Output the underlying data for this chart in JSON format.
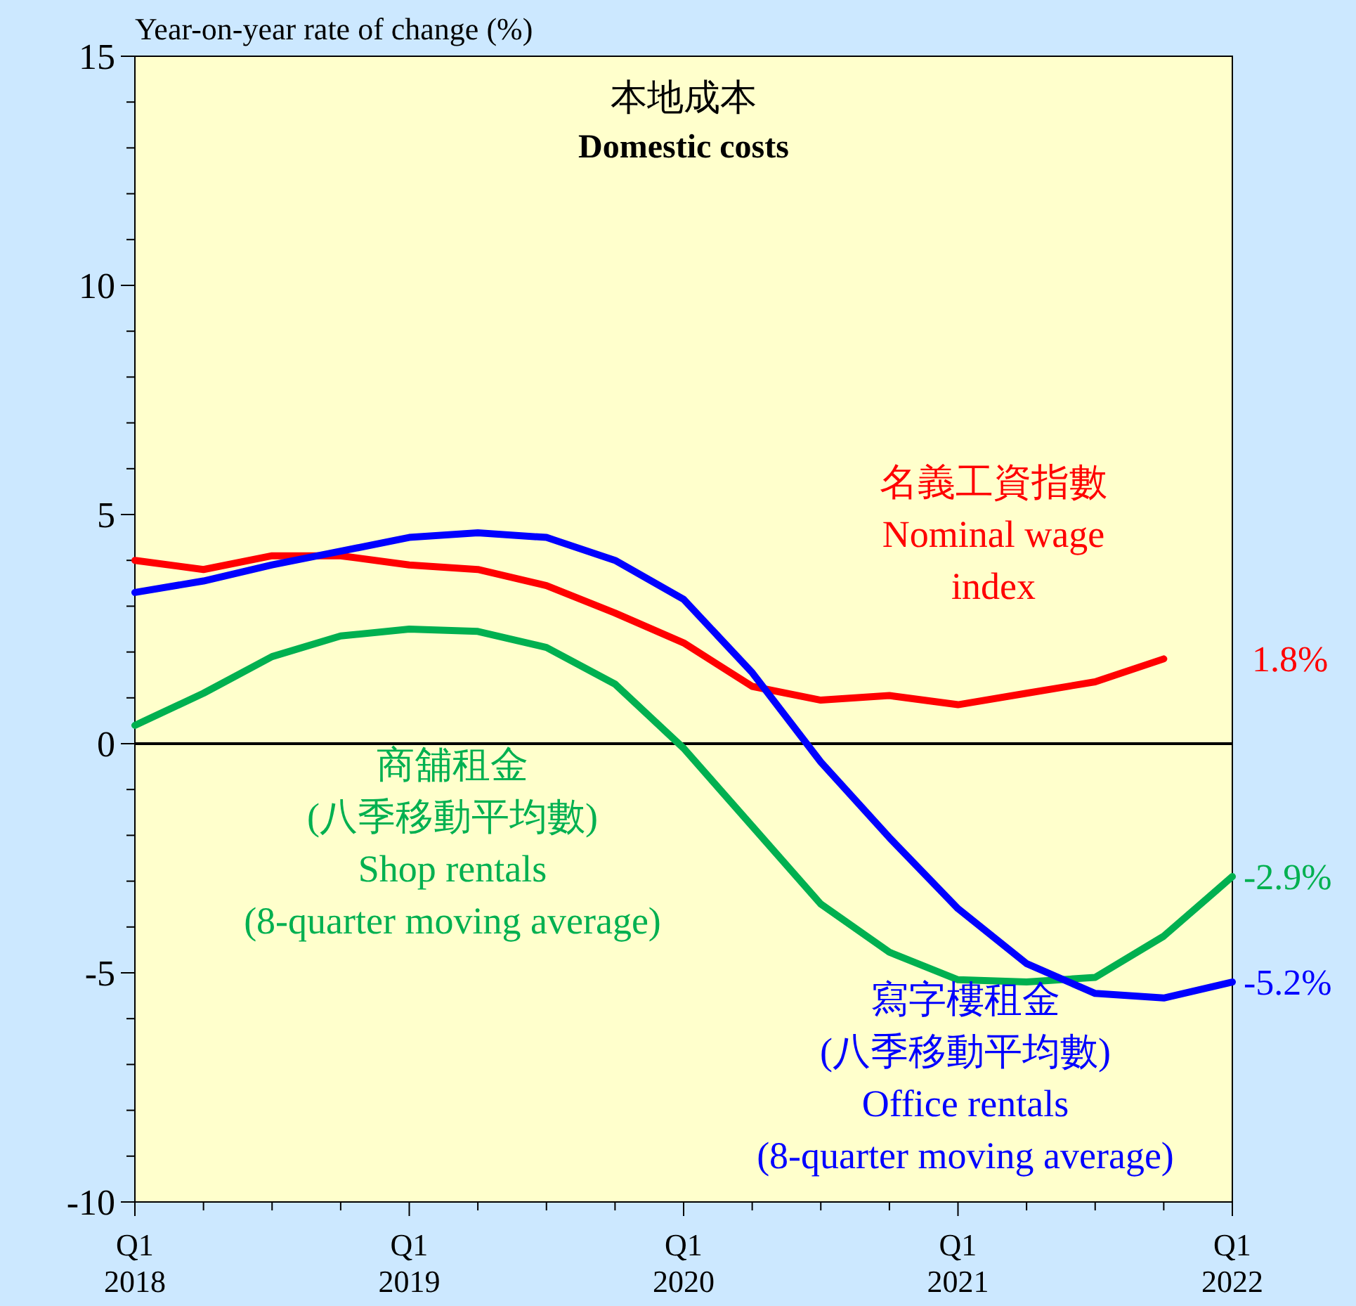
{
  "chart_data": {
    "type": "line",
    "title": "本地成本",
    "subtitle": "Domestic costs",
    "ylabel": "Year-on-year rate of change (%)",
    "categories": [
      "Q1\n2018",
      null,
      null,
      null,
      "Q1\n2019",
      null,
      null,
      null,
      "Q1\n2020",
      null,
      null,
      null,
      "Q1\n2021",
      null,
      null,
      null,
      "Q1\n2022"
    ],
    "ylim": [
      -10,
      15
    ],
    "yticks": [
      -10,
      {
        "value": -9,
        "label": null
      },
      {
        "value": -8,
        "label": null
      },
      {
        "value": -7,
        "label": null
      },
      {
        "value": -6,
        "label": null
      },
      -5,
      {
        "value": -4,
        "label": null
      },
      {
        "value": -3,
        "label": null
      },
      {
        "value": -2,
        "label": null
      },
      {
        "value": -1,
        "label": null
      },
      0,
      {
        "value": 1,
        "label": null
      },
      {
        "value": 2,
        "label": null
      },
      {
        "value": 3,
        "label": null
      },
      {
        "value": 4,
        "label": null
      },
      5,
      {
        "value": 6,
        "label": null
      },
      {
        "value": 7,
        "label": null
      },
      {
        "value": 8,
        "label": null
      },
      {
        "value": 9,
        "label": null
      },
      10,
      {
        "value": 11,
        "label": null
      },
      {
        "value": 12,
        "label": null
      },
      {
        "value": 13,
        "label": null
      },
      {
        "value": 14,
        "label": null
      },
      15
    ],
    "ref_lines": [
      {
        "axis": "y",
        "value": 0,
        "color": "#000000"
      }
    ],
    "series": [
      {
        "name": "名義工資指數\nNominal wage\nindex",
        "color": "#ff0000",
        "values": [
          4.0,
          3.8,
          4.1,
          4.1,
          3.9,
          3.8,
          3.45,
          2.85,
          2.2,
          1.25,
          0.95,
          1.05,
          0.85,
          1.1,
          1.35,
          1.85,
          null
        ]
      },
      {
        "name": "商舖租金\n(八季移動平均數)\nShop rentals\n(8-quarter moving average)",
        "color": "#00b050",
        "values": [
          0.4,
          1.1,
          1.9,
          2.35,
          2.5,
          2.45,
          2.1,
          1.3,
          -0.1,
          -1.8,
          -3.5,
          -4.55,
          -5.15,
          -5.2,
          -5.1,
          -4.2,
          -2.9
        ]
      },
      {
        "name": "寫字樓租金\n(八季移動平均數)\nOffice rentals\n(8-quarter moving average)",
        "color": "#0000ff",
        "values": [
          3.3,
          3.55,
          3.9,
          4.2,
          4.5,
          4.6,
          4.5,
          4.0,
          3.15,
          1.55,
          -0.4,
          -2.05,
          -3.6,
          -4.8,
          -5.45,
          -5.55,
          -5.2
        ]
      }
    ],
    "annotations": [
      "1.8%",
      "-2.9%",
      "-5.2%"
    ]
  }
}
